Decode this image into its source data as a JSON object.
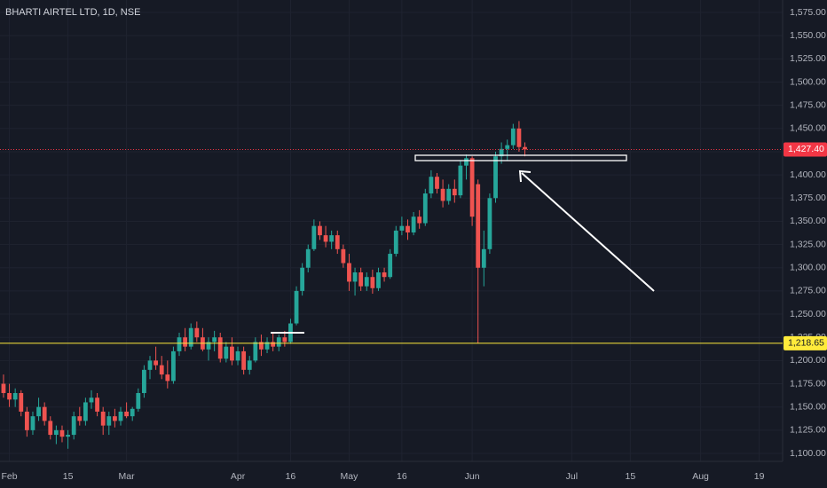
{
  "chart_data": {
    "type": "candlestick",
    "title": "BHARTI AIRTEL LTD, 1D, NSE",
    "open": [
      1175,
      1165,
      1158,
      1165,
      1145,
      1125,
      1140,
      1150,
      1135,
      1120,
      1125,
      1118,
      1120,
      1140,
      1135,
      1155,
      1160,
      1145,
      1130,
      1140,
      1135,
      1145,
      1140,
      1148,
      1165,
      1190,
      1200,
      1195,
      1185,
      1178,
      1210,
      1225,
      1215,
      1235,
      1225,
      1212,
      1220,
      1225,
      1202,
      1215,
      1200,
      1210,
      1190,
      1200,
      1220,
      1212,
      1220,
      1215,
      1225,
      1220,
      1240,
      1275,
      1300,
      1320,
      1345,
      1335,
      1328,
      1335,
      1320,
      1305,
      1285,
      1295,
      1280,
      1290,
      1278,
      1295,
      1290,
      1315,
      1340,
      1345,
      1338,
      1355,
      1348,
      1380,
      1398,
      1385,
      1372,
      1385,
      1378,
      1410,
      1418,
      1390,
      1300,
      1320,
      1375,
      1420,
      1428,
      1432,
      1450,
      1430
    ],
    "high": [
      1185,
      1175,
      1170,
      1168,
      1150,
      1145,
      1160,
      1155,
      1140,
      1130,
      1130,
      1125,
      1145,
      1150,
      1160,
      1168,
      1165,
      1150,
      1145,
      1148,
      1150,
      1155,
      1150,
      1170,
      1195,
      1205,
      1215,
      1205,
      1200,
      1215,
      1230,
      1235,
      1240,
      1242,
      1235,
      1225,
      1232,
      1230,
      1220,
      1225,
      1215,
      1215,
      1205,
      1225,
      1228,
      1225,
      1230,
      1228,
      1232,
      1245,
      1280,
      1305,
      1325,
      1352,
      1350,
      1345,
      1340,
      1340,
      1325,
      1315,
      1300,
      1300,
      1295,
      1298,
      1300,
      1300,
      1320,
      1345,
      1355,
      1352,
      1360,
      1362,
      1385,
      1405,
      1402,
      1395,
      1390,
      1395,
      1415,
      1422,
      1420,
      1395,
      1340,
      1380,
      1425,
      1435,
      1438,
      1455,
      1458,
      1435
    ],
    "low": [
      1160,
      1150,
      1150,
      1140,
      1118,
      1120,
      1135,
      1130,
      1115,
      1110,
      1112,
      1105,
      1115,
      1130,
      1130,
      1148,
      1140,
      1120,
      1120,
      1128,
      1130,
      1138,
      1135,
      1145,
      1160,
      1180,
      1190,
      1180,
      1170,
      1175,
      1205,
      1210,
      1212,
      1220,
      1210,
      1200,
      1210,
      1198,
      1198,
      1195,
      1195,
      1185,
      1185,
      1198,
      1205,
      1208,
      1210,
      1210,
      1215,
      1218,
      1238,
      1270,
      1295,
      1318,
      1330,
      1322,
      1320,
      1315,
      1300,
      1275,
      1270,
      1275,
      1275,
      1272,
      1275,
      1285,
      1288,
      1312,
      1335,
      1330,
      1335,
      1342,
      1345,
      1375,
      1380,
      1365,
      1368,
      1370,
      1375,
      1395,
      1345,
      1218.65,
      1280,
      1315,
      1370,
      1412,
      1415,
      1428,
      1425,
      1420
    ],
    "close": [
      1165,
      1158,
      1165,
      1145,
      1125,
      1140,
      1150,
      1135,
      1120,
      1125,
      1118,
      1120,
      1140,
      1135,
      1155,
      1160,
      1145,
      1130,
      1140,
      1135,
      1145,
      1140,
      1148,
      1165,
      1190,
      1200,
      1195,
      1185,
      1178,
      1210,
      1225,
      1215,
      1235,
      1225,
      1212,
      1220,
      1225,
      1202,
      1215,
      1200,
      1210,
      1190,
      1200,
      1220,
      1212,
      1220,
      1215,
      1225,
      1220,
      1240,
      1275,
      1300,
      1320,
      1345,
      1335,
      1328,
      1335,
      1320,
      1305,
      1285,
      1295,
      1280,
      1290,
      1278,
      1295,
      1290,
      1315,
      1340,
      1345,
      1338,
      1355,
      1348,
      1380,
      1398,
      1385,
      1372,
      1385,
      1378,
      1410,
      1418,
      1355,
      1300,
      1320,
      1375,
      1420,
      1428,
      1432,
      1450,
      1430,
      1427.4
    ],
    "up_color": "#26a69a",
    "down_color": "#ef5350",
    "xlim": [
      -0.6,
      133
    ],
    "ylim": [
      1091.4,
      1588.4
    ],
    "xticks": [
      {
        "value": 1,
        "label": "Feb"
      },
      {
        "value": 11,
        "label": "15"
      },
      {
        "value": 21,
        "label": "Mar"
      },
      {
        "value": 40,
        "label": "Apr"
      },
      {
        "value": 49,
        "label": "16"
      },
      {
        "value": 59,
        "label": "May"
      },
      {
        "value": 68,
        "label": "16"
      },
      {
        "value": 80,
        "label": "Jun"
      },
      {
        "value": 97,
        "label": "Jul"
      },
      {
        "value": 107,
        "label": "15"
      },
      {
        "value": 119,
        "label": "Aug"
      },
      {
        "value": 129,
        "label": "19"
      }
    ],
    "yticks": [
      {
        "value": 1100,
        "label": "1,100.00"
      },
      {
        "value": 1125,
        "label": "1,125.00"
      },
      {
        "value": 1150,
        "label": "1,150.00"
      },
      {
        "value": 1175,
        "label": "1,175.00"
      },
      {
        "value": 1200,
        "label": "1,200.00"
      },
      {
        "value": 1225,
        "label": "1,225.00"
      },
      {
        "value": 1250,
        "label": "1,250.00"
      },
      {
        "value": 1275,
        "label": "1,275.00"
      },
      {
        "value": 1300,
        "label": "1,300.00"
      },
      {
        "value": 1325,
        "label": "1,325.00"
      },
      {
        "value": 1350,
        "label": "1,350.00"
      },
      {
        "value": 1375,
        "label": "1,375.00"
      },
      {
        "value": 1400,
        "label": "1,400.00"
      },
      {
        "value": 1425,
        "label": "1,425.00"
      },
      {
        "value": 1450,
        "label": "1,450.00"
      },
      {
        "value": 1475,
        "label": "1,475.00"
      },
      {
        "value": 1500,
        "label": "1,500.00"
      },
      {
        "value": 1525,
        "label": "1,525.00"
      },
      {
        "value": 1550,
        "label": "1,550.00"
      },
      {
        "value": 1575,
        "label": "1,575.00"
      }
    ],
    "grid": true,
    "price_lines": [
      {
        "value": 1427.4,
        "label": "1,427.40",
        "color": "#f23645"
      },
      {
        "value": 1218.65,
        "label": "1,218.65",
        "color": "#ffeb3b"
      }
    ]
  }
}
